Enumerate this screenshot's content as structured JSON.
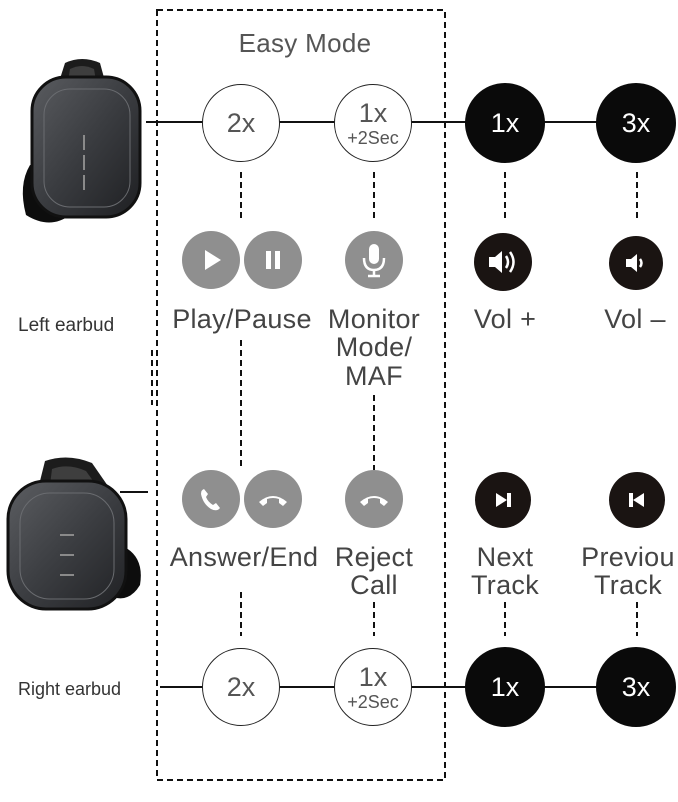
{
  "title": "Easy Mode",
  "earbuds": {
    "left": "Left earbud",
    "right": "Right earbud"
  },
  "taps": {
    "left": {
      "double": "2x",
      "hold_top": "1x",
      "hold_bottom": "+2Sec",
      "single": "1x",
      "triple": "3x"
    },
    "right": {
      "double": "2x",
      "hold_top": "1x",
      "hold_bottom": "+2Sec",
      "single": "1x",
      "triple": "3x"
    }
  },
  "functions": {
    "play_pause": "Play/Pause",
    "monitor_line1": "Monitor",
    "monitor_line2": "Mode/",
    "monitor_line3": "MAF",
    "vol_up": "Vol +",
    "vol_down": "Vol –",
    "answer_end": "Answer/End",
    "reject_line1": "Reject",
    "reject_line2": "Call",
    "next_line1": "Next",
    "next_line2": "Track",
    "prev_line1": "Previou",
    "prev_line2": "Track"
  },
  "icons": {
    "play": "play-icon",
    "pause": "pause-icon",
    "microphone": "microphone-icon",
    "volume_up": "volume-up-icon",
    "volume_down": "volume-down-icon",
    "phone_answer": "phone-answer-icon",
    "phone_end": "phone-end-icon",
    "phone_reject": "phone-reject-icon",
    "next_track": "next-track-icon",
    "previous_track": "previous-track-icon"
  },
  "colors": {
    "line": "#111111",
    "icon_grey": "#8f8f8f",
    "icon_dark": "#1a1412",
    "tap_black": "#0a0a0a",
    "text": "#444444"
  }
}
